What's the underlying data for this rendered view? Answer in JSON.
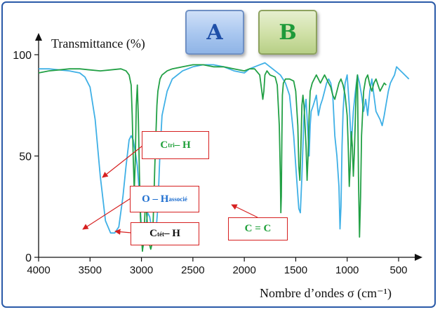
{
  "tags": {
    "a": "A",
    "b": "B"
  },
  "colors": {
    "A": "#3fb0e6",
    "B": "#22a045",
    "arrow": "#d62020",
    "frame": "#2a5aa8"
  },
  "annotations": {
    "ctri": {
      "main": "C",
      "sub": "tri",
      "rest": " – H"
    },
    "oh": {
      "main": "O – H",
      "sub": "associé"
    },
    "ctet": {
      "main": "C",
      "sub": "tét",
      "rest": " – H"
    },
    "cc": {
      "text": "C = C"
    }
  },
  "chart_data": {
    "type": "line",
    "ylabel": "Transmittance (%)",
    "xlabel": "Nombre d’ondes σ (cm⁻¹)",
    "xlim": [
      4000,
      350
    ],
    "ylim": [
      0,
      100
    ],
    "x_ticks": [
      4000,
      3500,
      3000,
      2500,
      2000,
      1500,
      1000,
      500
    ],
    "y_ticks": [
      0,
      50,
      100
    ],
    "series": [
      {
        "name": "A",
        "color": "#3fb0e6",
        "x": [
          4000,
          3900,
          3800,
          3700,
          3650,
          3600,
          3550,
          3500,
          3450,
          3400,
          3350,
          3300,
          3260,
          3220,
          3180,
          3150,
          3120,
          3100,
          3080,
          3060,
          3040,
          3020,
          3000,
          2985,
          2960,
          2940,
          2920,
          2900,
          2880,
          2860,
          2840,
          2820,
          2800,
          2750,
          2700,
          2600,
          2500,
          2400,
          2300,
          2200,
          2100,
          2000,
          1950,
          1900,
          1850,
          1800,
          1750,
          1700,
          1650,
          1600,
          1560,
          1520,
          1490,
          1470,
          1455,
          1440,
          1420,
          1400,
          1380,
          1370,
          1360,
          1350,
          1330,
          1300,
          1280,
          1260,
          1240,
          1220,
          1200,
          1180,
          1160,
          1140,
          1120,
          1100,
          1080,
          1070,
          1060,
          1050,
          1040,
          1030,
          1020,
          1000,
          980,
          960,
          940,
          920,
          900,
          880,
          860,
          840,
          820,
          800,
          780,
          760,
          740,
          720,
          700,
          680,
          660,
          640,
          620,
          600,
          580,
          560,
          540,
          520,
          500,
          480,
          460,
          440,
          420,
          400
        ],
        "y": [
          93,
          93,
          92.5,
          92,
          91.5,
          91,
          89,
          84,
          68,
          40,
          18,
          12,
          12,
          15,
          30,
          45,
          58,
          60,
          58,
          52,
          45,
          32,
          14,
          5,
          14,
          22,
          20,
          14,
          10,
          12,
          25,
          52,
          70,
          82,
          88,
          92,
          94,
          95,
          95,
          94,
          92,
          91,
          93,
          94,
          95,
          96,
          94,
          92,
          90,
          86,
          80,
          60,
          38,
          24,
          22,
          40,
          70,
          78,
          60,
          50,
          65,
          72,
          75,
          80,
          70,
          75,
          78,
          82,
          86,
          88,
          86,
          80,
          60,
          50,
          35,
          14,
          25,
          55,
          72,
          80,
          86,
          90,
          75,
          55,
          72,
          82,
          90,
          86,
          80,
          72,
          78,
          70,
          82,
          88,
          80,
          72,
          70,
          68,
          65,
          70,
          76,
          82,
          86,
          88,
          90,
          94,
          93,
          92,
          91,
          90,
          89,
          88
        ]
      },
      {
        "name": "B",
        "color": "#22a045",
        "x": [
          4000,
          3900,
          3800,
          3700,
          3600,
          3500,
          3400,
          3300,
          3200,
          3150,
          3120,
          3100,
          3090,
          3080,
          3070,
          3060,
          3050,
          3040,
          3030,
          3020,
          3010,
          3000,
          2990,
          2980,
          2970,
          2960,
          2950,
          2940,
          2930,
          2920,
          2910,
          2900,
          2890,
          2880,
          2870,
          2860,
          2850,
          2840,
          2820,
          2800,
          2750,
          2700,
          2600,
          2500,
          2400,
          2300,
          2200,
          2100,
          2000,
          1950,
          1900,
          1850,
          1830,
          1820,
          1810,
          1800,
          1780,
          1750,
          1700,
          1680,
          1660,
          1650,
          1645,
          1640,
          1635,
          1630,
          1620,
          1600,
          1560,
          1520,
          1500,
          1480,
          1470,
          1460,
          1450,
          1440,
          1430,
          1420,
          1400,
          1390,
          1380,
          1370,
          1360,
          1340,
          1320,
          1300,
          1280,
          1260,
          1240,
          1220,
          1200,
          1180,
          1160,
          1140,
          1120,
          1100,
          1080,
          1060,
          1040,
          1020,
          1000,
          990,
          980,
          970,
          960,
          950,
          940,
          930,
          920,
          910,
          900,
          890,
          880,
          870,
          860,
          840,
          820,
          800,
          780,
          760,
          740,
          720,
          700,
          680,
          660,
          640,
          620
        ],
        "y": [
          91,
          92,
          92.5,
          93,
          93,
          92.5,
          92,
          92.5,
          93,
          92,
          90,
          85,
          70,
          50,
          33,
          48,
          75,
          85,
          68,
          42,
          20,
          10,
          3,
          8,
          18,
          28,
          22,
          14,
          9,
          6,
          4,
          6,
          12,
          28,
          45,
          60,
          75,
          82,
          88,
          90,
          92,
          93,
          94,
          95,
          95,
          94,
          94,
          93,
          92,
          93,
          93,
          90,
          82,
          78,
          82,
          90,
          92,
          90,
          89,
          85,
          65,
          40,
          22,
          30,
          60,
          80,
          86,
          88,
          88,
          87,
          82,
          65,
          45,
          38,
          55,
          75,
          80,
          75,
          55,
          38,
          50,
          70,
          82,
          86,
          88,
          90,
          88,
          86,
          88,
          90,
          88,
          86,
          84,
          80,
          78,
          82,
          86,
          88,
          85,
          80,
          70,
          55,
          35,
          45,
          62,
          55,
          40,
          52,
          70,
          85,
          90,
          40,
          10,
          30,
          60,
          82,
          88,
          90,
          85,
          82,
          86,
          88,
          85,
          82,
          84,
          86,
          85
        ]
      }
    ]
  }
}
